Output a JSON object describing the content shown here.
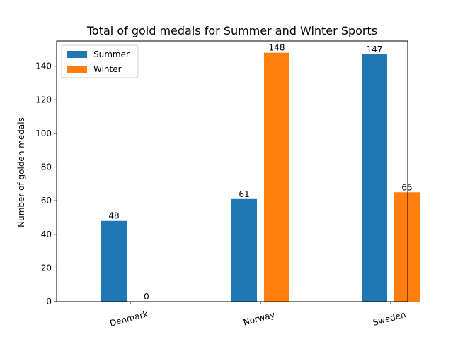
{
  "chart_data": {
    "type": "bar",
    "title": "Total of gold medals for Summer and Winter Sports",
    "xlabel": "",
    "ylabel": "Number of golden medals",
    "categories": [
      "Denmark",
      "Norway",
      "Sweden"
    ],
    "series": [
      {
        "name": "Summer",
        "color": "#1f77b4",
        "values": [
          48,
          61,
          147
        ]
      },
      {
        "name": "Winter",
        "color": "#ff7f0e",
        "values": [
          0,
          148,
          65
        ]
      }
    ],
    "ylim": [
      0,
      155
    ],
    "yticks": [
      0,
      20,
      40,
      60,
      80,
      100,
      120,
      140
    ],
    "legend": "top-left",
    "grid": false
  }
}
